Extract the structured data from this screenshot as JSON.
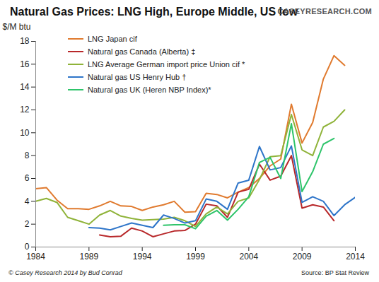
{
  "chart_data": {
    "type": "line",
    "title": "Natural Gas Prices: LNG High, Europe Middle, US low",
    "y_label": "$/M btu",
    "logo": "CASEYRESEARCH.COM",
    "caption": "© Casey Research 2014 by Bud Conrad",
    "source": "Source:  BP Stat Review",
    "x": [
      1984,
      1985,
      1986,
      1987,
      1988,
      1989,
      1990,
      1991,
      1992,
      1993,
      1994,
      1995,
      1996,
      1997,
      1998,
      1999,
      2000,
      2001,
      2002,
      2003,
      2004,
      2005,
      2006,
      2007,
      2008,
      2009,
      2010,
      2011,
      2012,
      2013,
      2014
    ],
    "series": [
      {
        "name": "LNG Japan cif",
        "color": "#e07a2e",
        "values": [
          5.1,
          5.2,
          4.1,
          3.35,
          3.35,
          3.3,
          3.6,
          4.0,
          3.6,
          3.55,
          3.2,
          3.5,
          3.7,
          4.0,
          3.05,
          3.1,
          4.7,
          4.6,
          4.3,
          4.8,
          5.2,
          6.0,
          7.1,
          7.7,
          12.5,
          9.1,
          10.9,
          14.7,
          16.75,
          15.9,
          null
        ]
      },
      {
        "name": "Natural gas Canada (Alberta) ‡",
        "color": "#b8282a",
        "values": [
          null,
          null,
          null,
          null,
          null,
          null,
          1.05,
          0.9,
          0.95,
          1.65,
          1.4,
          0.9,
          1.15,
          1.4,
          1.45,
          2.0,
          3.75,
          3.6,
          2.6,
          4.8,
          5.05,
          7.25,
          5.85,
          6.2,
          8.0,
          3.4,
          3.7,
          3.5,
          2.3,
          null,
          null
        ]
      },
      {
        "name": "LNG Average German import price Union cif *",
        "color": "#8fb339",
        "values": [
          4.0,
          4.25,
          3.9,
          2.6,
          2.3,
          2.0,
          2.8,
          3.2,
          2.7,
          2.5,
          2.35,
          2.4,
          2.45,
          2.6,
          2.3,
          1.8,
          2.9,
          3.5,
          2.9,
          4.0,
          4.3,
          5.9,
          7.9,
          8.0,
          11.6,
          8.5,
          8.0,
          10.5,
          11.0,
          12.0,
          null
        ]
      },
      {
        "name": "Natural gas US Henry Hub †",
        "color": "#2e75c9",
        "values": [
          null,
          null,
          null,
          null,
          null,
          1.7,
          1.65,
          1.5,
          1.8,
          2.1,
          1.9,
          1.7,
          2.8,
          2.5,
          2.1,
          2.3,
          4.2,
          4.0,
          3.3,
          5.6,
          5.85,
          8.8,
          6.75,
          6.95,
          8.85,
          3.9,
          4.4,
          4.0,
          2.75,
          3.7,
          4.35
        ]
      },
      {
        "name": "Natural gas UK (Heren NBP Index)*",
        "color": "#2ec46a",
        "values": [
          null,
          null,
          null,
          null,
          null,
          null,
          null,
          null,
          null,
          null,
          null,
          null,
          1.9,
          1.95,
          1.95,
          1.6,
          2.7,
          3.2,
          2.35,
          3.3,
          4.4,
          7.4,
          7.85,
          6.0,
          10.8,
          4.85,
          6.6,
          9.0,
          9.5,
          null,
          null
        ]
      }
    ],
    "xlim": [
      1984,
      2014
    ],
    "xticks": [
      1984,
      1989,
      1994,
      1999,
      2004,
      2009,
      2014
    ],
    "ylim": [
      0,
      18
    ],
    "yticks": [
      0,
      2,
      4,
      6,
      8,
      10,
      12,
      14,
      16,
      18
    ],
    "grid": false,
    "legend": "top-left"
  }
}
